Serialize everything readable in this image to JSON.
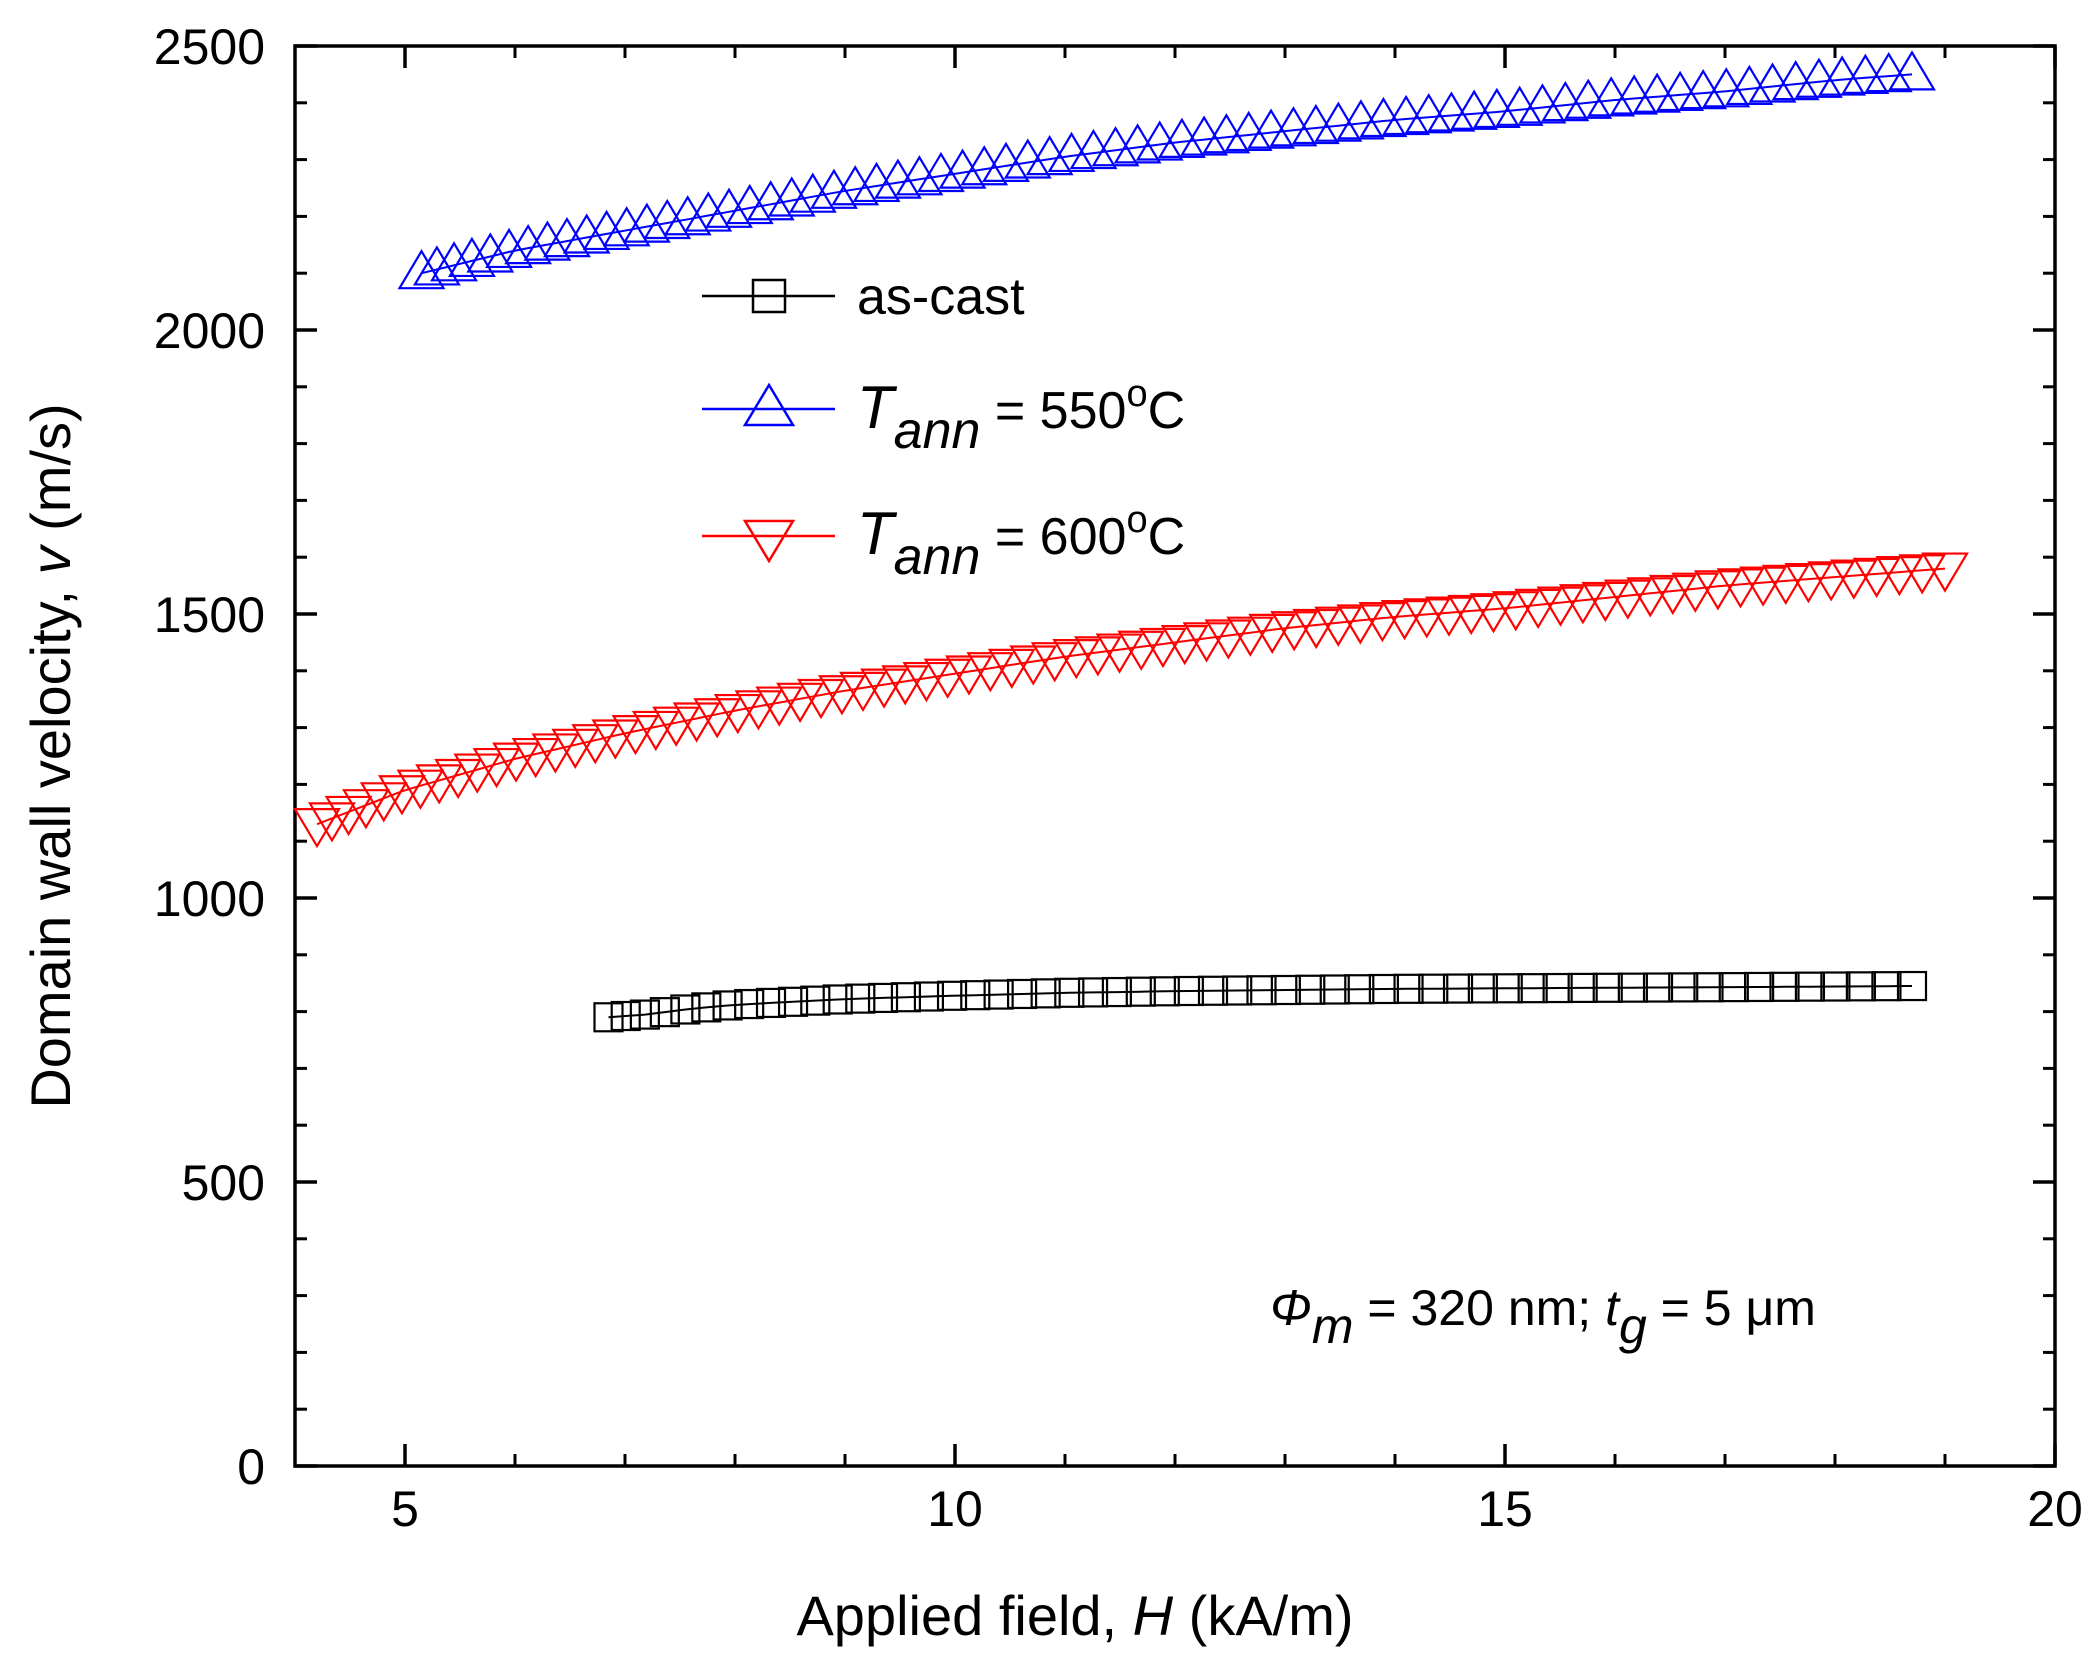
{
  "chart_data": {
    "type": "scatter",
    "title": "",
    "xlabel": {
      "prefix": "Applied field, ",
      "var": "H",
      "suffix": " (kA/m)"
    },
    "ylabel": {
      "prefix": "Domain wall velocity, ",
      "var": "v",
      "suffix": " (m/s)"
    },
    "xlim": [
      4,
      20
    ],
    "ylim": [
      0,
      2500
    ],
    "x_ticks": [
      5,
      10,
      15,
      20
    ],
    "y_ticks": [
      0,
      500,
      1000,
      1500,
      2000,
      2500
    ],
    "x_minor_step": 1,
    "y_minor_step": 100,
    "grid": false,
    "legend_position": "upper-center",
    "series": [
      {
        "name": "as-cast",
        "label": "as-cast",
        "marker": "square",
        "color": "#000000",
        "x_start": 6.85,
        "x_end": 18.7,
        "count": 56,
        "points": [
          [
            6.85,
            790
          ],
          [
            7.2,
            795
          ],
          [
            7.6,
            805
          ],
          [
            8.0,
            812
          ],
          [
            9.0,
            822
          ],
          [
            10.0,
            828
          ],
          [
            11.0,
            833
          ],
          [
            12.0,
            836
          ],
          [
            13.0,
            838
          ],
          [
            14.0,
            840
          ],
          [
            15.0,
            841
          ],
          [
            16.0,
            842
          ],
          [
            17.0,
            843
          ],
          [
            18.7,
            845
          ]
        ]
      },
      {
        "name": "T_ann = 550 C",
        "label": {
          "var": "T",
          "sub": "ann",
          "value": " = 550",
          "sup": "o",
          "unit": "C"
        },
        "marker": "triangle-up",
        "color": "#0000ff",
        "x_start": 5.15,
        "x_end": 18.7,
        "count": 70,
        "points": [
          [
            5.15,
            2100
          ],
          [
            6.0,
            2140
          ],
          [
            7.0,
            2175
          ],
          [
            8.0,
            2210
          ],
          [
            9.0,
            2245
          ],
          [
            10.0,
            2275
          ],
          [
            11.0,
            2305
          ],
          [
            12.0,
            2330
          ],
          [
            13.0,
            2350
          ],
          [
            14.0,
            2370
          ],
          [
            15.0,
            2385
          ],
          [
            16.0,
            2405
          ],
          [
            17.0,
            2420
          ],
          [
            18.0,
            2440
          ],
          [
            18.7,
            2450
          ]
        ]
      },
      {
        "name": "T_ann = 600 C",
        "label": {
          "var": "T",
          "sub": "ann",
          "value": " = 600",
          "sup": "o",
          "unit": "C"
        },
        "marker": "triangle-down",
        "color": "#ff0000",
        "x_start": 4.2,
        "x_end": 19.0,
        "count": 78,
        "points": [
          [
            4.2,
            1130
          ],
          [
            5.0,
            1190
          ],
          [
            6.0,
            1245
          ],
          [
            7.0,
            1290
          ],
          [
            8.0,
            1330
          ],
          [
            9.0,
            1365
          ],
          [
            10.0,
            1395
          ],
          [
            11.0,
            1425
          ],
          [
            12.0,
            1450
          ],
          [
            13.0,
            1475
          ],
          [
            14.0,
            1495
          ],
          [
            15.0,
            1510
          ],
          [
            16.0,
            1530
          ],
          [
            17.0,
            1550
          ],
          [
            18.0,
            1565
          ],
          [
            19.0,
            1580
          ]
        ]
      }
    ],
    "annotation": {
      "phi": "Φ",
      "phi_sub": "m",
      "mid": " = 320 nm; ",
      "t": "t",
      "t_sub": "g",
      "end": " = 5 μm"
    }
  }
}
